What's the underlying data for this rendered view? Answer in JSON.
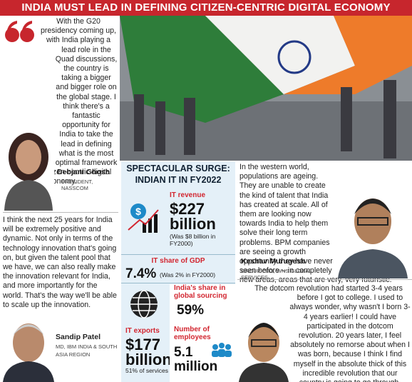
{
  "header": {
    "title": "INDIA MUST LEAD IN DEFINING CITIZEN-CENTRIC DIGITAL ECONOMY"
  },
  "quotes": [
    {
      "text": "With the G20 presidency coming up, with India playing a lead role in the Quad discussions, the country is taking a bigger and bigger role on the global stage. I think there's a fantastic opportunity for India to take the lead in defining what is the most optimal framework for a truly citizen-centric digital economy.",
      "name": "Debjani Ghosh",
      "role": "PRESIDENT, NASSCOM"
    },
    {
      "text": "I think the next 25 years for India will be extremely positive and dynamic. Not only in terms of the technology innovation that's going on, but given the talent pool that we have, we can also really make the innovation relevant for India, and more importantly for the world. That's the way we'll be able to scale up the innovation.",
      "name": "Sandip Patel",
      "role": "MD, IBM INDIA & SOUTH ASIA REGION"
    },
    {
      "text": "In the western world, populations are ageing. They are unable to create the kind of talent that India has created at scale. All of them are looking now towards India to help them solve their long term problems. BPM companies are seeing a growth opportunity they have never seen before – in completely new areas, areas that are very, very futuristic.",
      "name": "Keshav Murugesh",
      "role": "GROUP CEO, WNS GLOBAL SERVICES"
    },
    {
      "text": "The dotcom revolution had started 3-4 years before I got to college. I used to always wonder, why wasn't I born 3-4 years earlier! I could have participated in the dotcom revolution. 20 years later, I feel absolutely no remorse about when I was born, because I think I find myself in the absolute thick of this incredible revolution that our country is going to go through."
    }
  ],
  "infographic": {
    "title": [
      "SPECTACULAR SURGE:",
      "INDIAN IT IN FY2022"
    ],
    "items": [
      {
        "label": "IT revenue",
        "value": "$227 billion",
        "note": "(Was $8 billion in FY2000)"
      },
      {
        "label": "IT share of GDP",
        "value": "7.4%",
        "note": "(Was 2% in FY2000)"
      },
      {
        "label": "India's share in global sourcing",
        "value": "59%"
      },
      {
        "label": "IT exports",
        "value": "$177 billion",
        "note": "51% of services"
      },
      {
        "label": "Number of employees",
        "value": "5.1 million"
      }
    ]
  }
}
